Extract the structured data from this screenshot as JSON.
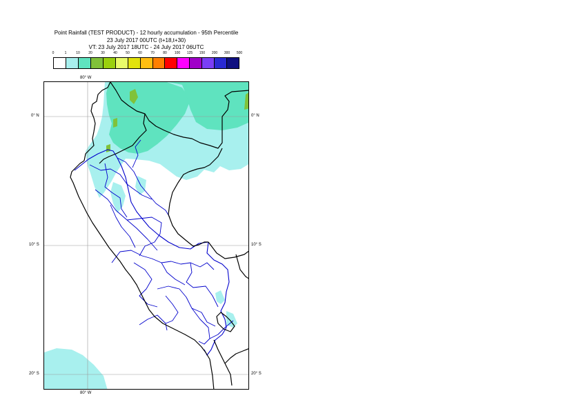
{
  "title": {
    "line1": "Point Rainfall (TEST PRODUCT) - 12 hourly accumulation - 95th Percentile",
    "line2": "23 July 2017 00UTC (t+18,t+30)",
    "line3": "VT: 23 July 2017 18UTC - 24 July 2017 06UTC"
  },
  "legend": {
    "labels": [
      "0",
      "1",
      "10",
      "20",
      "30",
      "40",
      "50",
      "60",
      "70",
      "80",
      "100",
      "125",
      "150",
      "200",
      "300",
      "500"
    ],
    "colors": [
      "#ffffff",
      "#a8f0ee",
      "#5fe3bf",
      "#80c23a",
      "#9ad00e",
      "#e9fb6a",
      "#e2e20d",
      "#ffbe12",
      "#ff7f00",
      "#ff0000",
      "#ff00ff",
      "#a000c8",
      "#7a3ef5",
      "#2a2ad2",
      "#101080"
    ]
  },
  "map": {
    "lon_labels": {
      "top": "80° W",
      "bottom": "80° W"
    },
    "lat_labels": {
      "eq": "0° N",
      "s10": "10° S",
      "s20": "20° S"
    },
    "rain_colors": {
      "light": "#a8f0ee",
      "medium": "#5fe3bf",
      "heavy": "#80c23a"
    },
    "border_color": "#0000cc",
    "coast_color": "#000000"
  }
}
